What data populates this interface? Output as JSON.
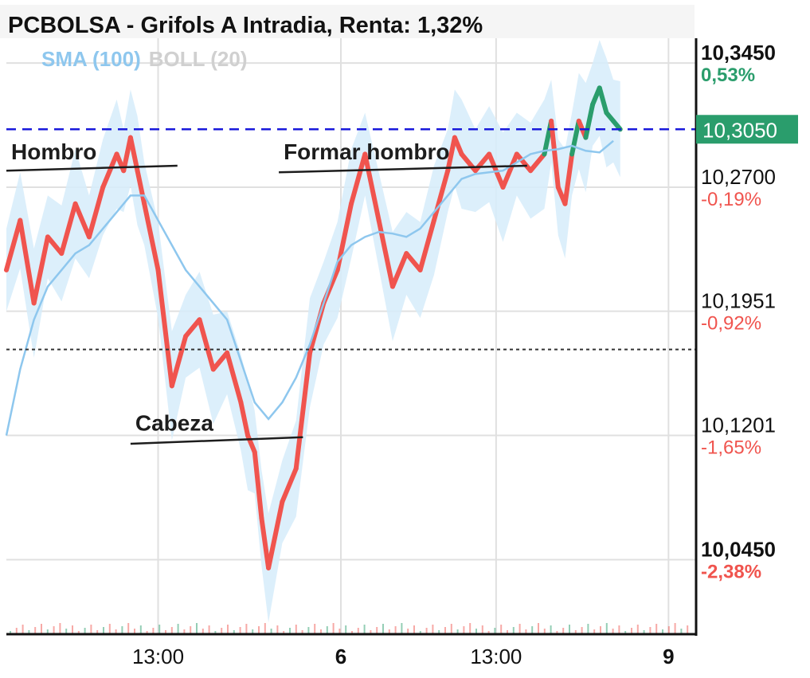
{
  "title": "PCBOLSA - Grifols A Intradia, Renta: 1,32%",
  "indicators": [
    {
      "label": "SMA (100)",
      "color": "#8ec7ee"
    },
    {
      "label": "BOLL (20)",
      "color": "#d0d0d0"
    }
  ],
  "colors": {
    "up": "#2a9d6c",
    "down": "#f0544e",
    "sma": "#8ec7ee",
    "band": "#d6ecfa",
    "reference_line": "#1a1adb",
    "grid": "#e0e0e0"
  },
  "current_price_label": "10,3050",
  "chart_data": {
    "type": "line",
    "title": "PCBOLSA - Grifols A Intradia, Renta: 1,32%",
    "ylim": [
      10.0,
      10.36
    ],
    "x_ticks": [
      {
        "label": "13:00",
        "bold": false
      },
      {
        "label": "6",
        "bold": true
      },
      {
        "label": "13:00",
        "bold": false
      },
      {
        "label": "9",
        "bold": true
      }
    ],
    "y_levels": [
      {
        "price": "10,3450",
        "pct": "0,53%",
        "value": 10.345,
        "bold": true,
        "pct_color": "#2a9d6c"
      },
      {
        "price": "10,2700",
        "pct": "-0,19%",
        "value": 10.27,
        "bold": false,
        "pct_color": "#f0544e"
      },
      {
        "price": "10,1951",
        "pct": "-0,92%",
        "value": 10.1951,
        "bold": false,
        "pct_color": "#f0544e"
      },
      {
        "price": "10,1201",
        "pct": "-1,65%",
        "value": 10.1201,
        "bold": false,
        "pct_color": "#f0544e"
      },
      {
        "price": "10,0450",
        "pct": "-2,38%",
        "value": 10.045,
        "bold": true,
        "pct_color": "#f0544e"
      }
    ],
    "reference_lines": [
      {
        "value": 10.305,
        "style": "dashed",
        "color": "#1a1adb"
      },
      {
        "value": 10.172,
        "style": "dotted",
        "color": "#333333"
      }
    ],
    "annotations": [
      {
        "text": "Hombro",
        "line_x": [
          0.0,
          24.8
        ],
        "line_y": [
          10.28,
          10.283
        ]
      },
      {
        "text": "Formar hombro",
        "line_x": [
          39.5,
          75.5
        ],
        "line_y": [
          10.279,
          10.283
        ]
      },
      {
        "text": "Cabeza",
        "line_x": [
          18.0,
          43.0
        ],
        "line_y": [
          10.115,
          10.119
        ]
      }
    ],
    "series": [
      {
        "name": "Precio",
        "x": [
          0,
          2,
          4,
          6,
          8,
          10,
          12,
          14,
          16,
          17,
          18,
          19,
          20,
          22,
          24,
          26,
          28,
          30,
          32,
          34,
          35,
          36,
          37,
          38,
          40,
          42,
          44,
          46,
          48,
          50,
          52,
          54,
          56,
          58,
          60,
          62,
          64,
          65,
          66,
          68,
          70,
          72,
          74,
          76,
          78,
          79,
          80,
          81,
          82,
          83,
          84,
          85,
          86,
          87,
          88,
          89
        ],
        "values": [
          10.22,
          10.25,
          10.2,
          10.24,
          10.23,
          10.26,
          10.24,
          10.27,
          10.29,
          10.28,
          10.3,
          10.28,
          10.26,
          10.22,
          10.15,
          10.18,
          10.19,
          10.16,
          10.17,
          10.14,
          10.12,
          10.11,
          10.07,
          10.04,
          10.08,
          10.1,
          10.17,
          10.2,
          10.22,
          10.26,
          10.29,
          10.25,
          10.21,
          10.23,
          10.22,
          10.25,
          10.28,
          10.3,
          10.29,
          10.28,
          10.29,
          10.27,
          10.29,
          10.28,
          10.29,
          10.31,
          10.27,
          10.26,
          10.29,
          10.31,
          10.3,
          10.32,
          10.33,
          10.315,
          10.31,
          10.305
        ]
      },
      {
        "name": "SMA (100)",
        "x": [
          0,
          2,
          4,
          6,
          8,
          10,
          12,
          14,
          16,
          18,
          20,
          22,
          24,
          26,
          28,
          30,
          32,
          34,
          36,
          38,
          40,
          42,
          44,
          46,
          48,
          50,
          52,
          54,
          56,
          58,
          60,
          62,
          64,
          66,
          68,
          70,
          72,
          74,
          76,
          78,
          80,
          82,
          84,
          86,
          88
        ],
        "values": [
          10.12,
          10.16,
          10.19,
          10.21,
          10.22,
          10.23,
          10.235,
          10.245,
          10.255,
          10.265,
          10.265,
          10.25,
          10.235,
          10.22,
          10.21,
          10.2,
          10.19,
          10.165,
          10.14,
          10.13,
          10.14,
          10.155,
          10.175,
          10.2,
          10.225,
          10.235,
          10.24,
          10.243,
          10.242,
          10.24,
          10.245,
          10.255,
          10.265,
          10.275,
          10.278,
          10.279,
          10.28,
          10.285,
          10.29,
          10.292,
          10.293,
          10.295,
          10.292,
          10.291,
          10.298
        ]
      }
    ]
  }
}
